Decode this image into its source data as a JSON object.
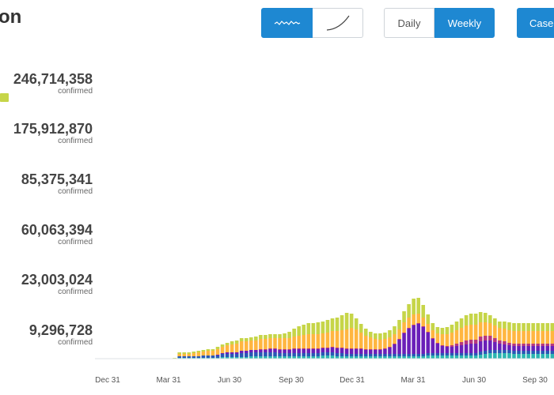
{
  "title": "on",
  "toolbar": {
    "line_icon": "wave-line-icon",
    "curve_icon": "curve-icon",
    "daily_label": "Daily",
    "weekly_label": "Weekly",
    "cases_label": "Case"
  },
  "legend": [
    {
      "value": "246,714,358",
      "label": "confirmed"
    },
    {
      "value": "175,912,870",
      "label": "confirmed"
    },
    {
      "value": "85,375,341",
      "label": "confirmed"
    },
    {
      "value": "60,063,394",
      "label": "confirmed"
    },
    {
      "value": "23,003,024",
      "label": "confirmed"
    },
    {
      "value": "9,296,728",
      "label": "confirmed"
    }
  ],
  "colors": {
    "accent": "#1e88d2",
    "series": [
      "#2bb5b0",
      "#2a57b5",
      "#6a1fb8",
      "#b6377e",
      "#ffb640",
      "#c6d548"
    ]
  },
  "chart_data": {
    "type": "bar",
    "stacked": true,
    "xticks": [
      "Dec 31",
      "Mar 31",
      "Jun 30",
      "Sep 30",
      "Dec 31",
      "Mar 31",
      "Jun 30",
      "Sep 30"
    ],
    "series": [
      {
        "values": [
          0,
          0,
          0,
          0,
          0,
          0,
          0,
          0,
          0,
          0,
          1,
          1,
          1,
          1,
          1,
          1,
          1,
          1,
          1,
          2,
          2,
          2,
          2,
          2,
          2,
          3,
          3,
          3,
          3,
          3,
          3,
          3,
          3,
          3,
          3,
          3,
          3,
          3,
          3,
          3,
          4,
          4,
          4,
          3,
          3,
          3,
          3,
          3,
          3,
          3,
          3,
          3,
          3,
          3,
          3,
          3,
          3,
          3,
          3,
          3,
          3,
          3,
          4,
          4,
          4,
          4,
          4,
          4,
          4,
          4,
          4,
          4,
          4,
          5,
          6,
          7,
          7,
          7,
          7,
          7,
          6,
          6,
          6,
          6,
          6,
          6,
          6,
          6,
          6,
          6
        ]
      },
      {
        "values": [
          0,
          0,
          0,
          0,
          0,
          0,
          0,
          0,
          0,
          0,
          2,
          2,
          2,
          2,
          2,
          3,
          3,
          3,
          3,
          4,
          4,
          4,
          4,
          5,
          5,
          5,
          5,
          5,
          5,
          5,
          5,
          4,
          4,
          4,
          4,
          4,
          4,
          4,
          4,
          4,
          4,
          4,
          4,
          4,
          4,
          3,
          3,
          3,
          3,
          3,
          3,
          3,
          3,
          3,
          3,
          3,
          3,
          3,
          3,
          3,
          3,
          3,
          3,
          3,
          3,
          3,
          3,
          3,
          3,
          3,
          3,
          3,
          3,
          4,
          4,
          4,
          4,
          4,
          4,
          4,
          4,
          4,
          4,
          4,
          4,
          4,
          4,
          4,
          4,
          4
        ]
      },
      {
        "values": [
          0,
          0,
          0,
          0,
          0,
          0,
          0,
          0,
          0,
          0,
          0,
          0,
          0,
          0,
          0,
          0,
          0,
          0,
          1,
          1,
          2,
          2,
          2,
          3,
          3,
          3,
          3,
          3,
          3,
          4,
          4,
          4,
          4,
          4,
          5,
          5,
          5,
          5,
          5,
          5,
          5,
          5,
          6,
          6,
          6,
          6,
          6,
          6,
          6,
          5,
          5,
          5,
          5,
          6,
          8,
          12,
          18,
          26,
          32,
          36,
          38,
          34,
          26,
          18,
          12,
          9,
          8,
          8,
          9,
          10,
          11,
          12,
          12,
          13,
          13,
          12,
          10,
          8,
          7,
          6,
          6,
          6,
          6,
          6,
          6,
          6,
          6,
          6,
          6,
          6
        ]
      },
      {
        "values": [
          0,
          0,
          0,
          0,
          0,
          0,
          0,
          0,
          0,
          0,
          0,
          0,
          0,
          0,
          0,
          0,
          0,
          0,
          0,
          0,
          0,
          0,
          0,
          0,
          0,
          0,
          0,
          1,
          1,
          1,
          1,
          1,
          1,
          1,
          1,
          1,
          1,
          1,
          1,
          1,
          1,
          1,
          1,
          1,
          1,
          1,
          1,
          1,
          1,
          1,
          1,
          1,
          1,
          1,
          1,
          1,
          1,
          1,
          1,
          1,
          1,
          1,
          1,
          1,
          1,
          1,
          1,
          2,
          3,
          4,
          5,
          5,
          5,
          6,
          6,
          6,
          5,
          4,
          4,
          3,
          3,
          3,
          3,
          3,
          3,
          3,
          3,
          3,
          3,
          3
        ]
      },
      {
        "values": [
          0,
          0,
          0,
          0,
          0,
          0,
          0,
          0,
          0,
          0,
          3,
          3,
          3,
          4,
          5,
          5,
          6,
          6,
          7,
          8,
          9,
          10,
          11,
          12,
          12,
          12,
          12,
          13,
          13,
          13,
          13,
          14,
          14,
          14,
          15,
          16,
          17,
          18,
          18,
          18,
          18,
          19,
          20,
          21,
          22,
          24,
          26,
          24,
          20,
          17,
          15,
          13,
          12,
          12,
          12,
          12,
          12,
          13,
          13,
          13,
          12,
          11,
          10,
          10,
          12,
          14,
          15,
          16,
          17,
          18,
          19,
          19,
          19,
          18,
          17,
          16,
          16,
          16,
          16,
          16,
          16,
          16,
          16,
          16,
          16,
          16,
          16,
          16,
          16,
          16
        ]
      },
      {
        "values": [
          0,
          0,
          0,
          0,
          0,
          0,
          0,
          0,
          0,
          1,
          2,
          2,
          2,
          2,
          2,
          2,
          2,
          2,
          3,
          3,
          3,
          4,
          4,
          4,
          4,
          4,
          5,
          5,
          5,
          5,
          5,
          5,
          6,
          8,
          10,
          12,
          13,
          14,
          14,
          15,
          15,
          16,
          16,
          17,
          19,
          21,
          18,
          14,
          11,
          9,
          7,
          7,
          8,
          8,
          9,
          10,
          12,
          14,
          17,
          20,
          20,
          16,
          12,
          9,
          8,
          8,
          9,
          10,
          11,
          12,
          13,
          14,
          14,
          13,
          12,
          10,
          9,
          8,
          9,
          10,
          10,
          10,
          10,
          10,
          10,
          10,
          10,
          10,
          10,
          10
        ]
      }
    ]
  }
}
